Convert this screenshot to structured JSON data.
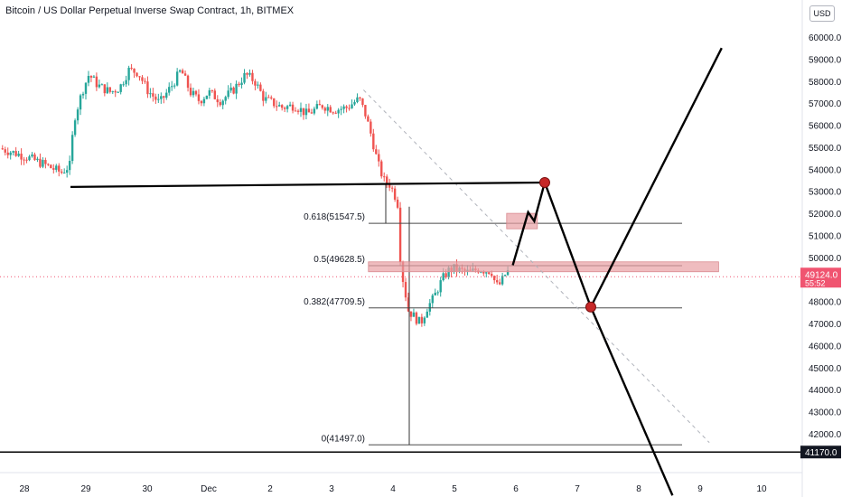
{
  "header": {
    "title": "Bitcoin / US Dollar Perpetual Inverse Swap Contract, 1h, BITMEX",
    "currency": "USD"
  },
  "colors": {
    "up": "#26a69a",
    "down": "#ef5350",
    "zone": "#e8a0a4",
    "marker": "#c62828",
    "price_label": "#f05470",
    "dark_label": "#131722",
    "ink": "#000000"
  },
  "chart_data": {
    "type": "candlestick",
    "symbol": "Bitcoin / US Dollar Perpetual Inverse Swap Contract",
    "interval": "1h",
    "exchange": "BITMEX",
    "ylim": [
      40000,
      61500
    ],
    "y_ticks": [
      "42000.0",
      "43000.0",
      "44000.0",
      "45000.0",
      "46000.0",
      "47000.0",
      "48000.0",
      "49000.0",
      "50000.0",
      "51000.0",
      "52000.0",
      "53000.0",
      "54000.0",
      "55000.0",
      "56000.0",
      "57000.0",
      "58000.0",
      "59000.0",
      "60000.0"
    ],
    "x_ticks": [
      {
        "label": "28",
        "day": 0
      },
      {
        "label": "29",
        "day": 1
      },
      {
        "label": "30",
        "day": 2
      },
      {
        "label": "Dec",
        "day": 3
      },
      {
        "label": "2",
        "day": 4
      },
      {
        "label": "3",
        "day": 5
      },
      {
        "label": "4",
        "day": 6
      },
      {
        "label": "5",
        "day": 7
      },
      {
        "label": "6",
        "day": 8
      },
      {
        "label": "7",
        "day": 9
      },
      {
        "label": "8",
        "day": 10
      },
      {
        "label": "9",
        "day": 11
      },
      {
        "label": "10",
        "day": 12
      }
    ],
    "price_path": [
      [
        -0.4,
        54950
      ],
      [
        0.0,
        54600
      ],
      [
        0.3,
        54250
      ],
      [
        0.6,
        53850
      ],
      [
        0.75,
        54200
      ],
      [
        0.8,
        56200
      ],
      [
        0.95,
        57600
      ],
      [
        1.05,
        58300
      ],
      [
        1.2,
        57800
      ],
      [
        1.4,
        57500
      ],
      [
        1.55,
        57700
      ],
      [
        1.7,
        58500
      ],
      [
        1.85,
        58400
      ],
      [
        2.0,
        57600
      ],
      [
        2.2,
        57000
      ],
      [
        2.4,
        57800
      ],
      [
        2.55,
        58500
      ],
      [
        2.7,
        57500
      ],
      [
        2.85,
        57100
      ],
      [
        3.0,
        57500
      ],
      [
        3.2,
        57100
      ],
      [
        3.4,
        57600
      ],
      [
        3.6,
        58300
      ],
      [
        3.75,
        58000
      ],
      [
        3.9,
        57200
      ],
      [
        4.05,
        57000
      ],
      [
        4.2,
        56800
      ],
      [
        4.4,
        56900
      ],
      [
        4.6,
        56500
      ],
      [
        4.85,
        56900
      ],
      [
        5.05,
        56700
      ],
      [
        5.25,
        56800
      ],
      [
        5.45,
        57200
      ],
      [
        5.55,
        56500
      ],
      [
        5.65,
        55500
      ],
      [
        5.75,
        54300
      ],
      [
        5.85,
        53500
      ],
      [
        5.95,
        53300
      ],
      [
        6.02,
        52900
      ],
      [
        6.08,
        52400
      ],
      [
        6.1,
        50500
      ],
      [
        6.15,
        49200
      ],
      [
        6.25,
        47600
      ],
      [
        6.35,
        47300
      ],
      [
        6.45,
        47000
      ],
      [
        6.55,
        47700
      ],
      [
        6.65,
        48100
      ],
      [
        6.8,
        49000
      ],
      [
        6.9,
        49400
      ],
      [
        7.0,
        49500
      ],
      [
        7.1,
        49400
      ],
      [
        7.25,
        49300
      ],
      [
        7.4,
        49500
      ],
      [
        7.5,
        49400
      ],
      [
        7.6,
        49400
      ],
      [
        7.68,
        48700
      ],
      [
        7.75,
        48800
      ],
      [
        7.82,
        49200
      ],
      [
        7.88,
        49400
      ]
    ],
    "levels": [
      {
        "label": "0.618(51547.5)",
        "price": 51547.5
      },
      {
        "label": "0.5(49628.5)",
        "price": 49628.5
      },
      {
        "label": "0.382(47709.5)",
        "price": 47709.5
      },
      {
        "label": "0(41497.0)",
        "price": 41497.0
      }
    ],
    "horizontal_lines": [
      {
        "name": "resistance",
        "from_day": 0.75,
        "to_day": 8.45,
        "price_start": 53200,
        "price_end": 53400
      },
      {
        "name": "support",
        "from_day": -0.4,
        "to_day": 12.9,
        "price": 41170
      }
    ],
    "zones": [
      {
        "name": "small-zone",
        "day_start": 7.85,
        "day_end": 8.35,
        "price_top": 52000,
        "price_bottom": 51300
      },
      {
        "name": "wide-zone",
        "day_start": 5.6,
        "day_end": 11.3,
        "price_top": 49800,
        "price_bottom": 49350
      }
    ],
    "projection": [
      [
        7.95,
        49650
      ],
      [
        8.2,
        52050
      ],
      [
        8.3,
        51650
      ],
      [
        8.47,
        53400
      ],
      [
        9.22,
        47750
      ],
      [
        11.35,
        59500
      ]
    ],
    "projection_down": [
      [
        9.22,
        47750
      ],
      [
        10.55,
        39200
      ]
    ],
    "markers": [
      [
        8.47,
        53400
      ],
      [
        9.22,
        47750
      ]
    ],
    "diagonal": [
      [
        5.52,
        57600
      ],
      [
        11.15,
        41600
      ]
    ],
    "current_price": {
      "value": "49124.0",
      "countdown": "55:52",
      "price": 49124
    },
    "support_label": {
      "value": "41170.0",
      "price": 41170
    }
  }
}
